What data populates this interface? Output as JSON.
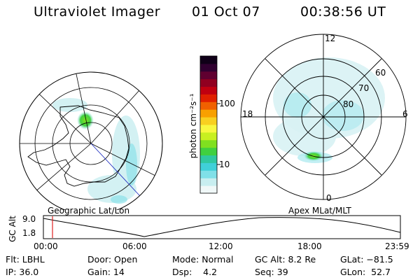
{
  "header": {
    "title": "Ultraviolet Imager",
    "date": "01 Oct 07",
    "time": "00:38:56 UT"
  },
  "panels": {
    "left_label": "Geographic Lat/Lon",
    "right_label": "Apex MLat/MLT",
    "right_mlt_labels": [
      "12",
      "18",
      "6",
      "0"
    ],
    "right_lat_labels": [
      "60",
      "70",
      "80"
    ]
  },
  "colorbar": {
    "unit_label": "photon cm⁻²s⁻¹",
    "tick_labels": [
      "100",
      "10"
    ],
    "colors": [
      "#f0f8f8",
      "#c8eef0",
      "#80e0e8",
      "#40d0d8",
      "#30c8a0",
      "#40d040",
      "#80e020",
      "#c8f020",
      "#f8f840",
      "#f8d020",
      "#f8a000",
      "#f06000",
      "#e02000",
      "#c00010",
      "#900020",
      "#600030",
      "#300030",
      "#100018"
    ]
  },
  "timeline": {
    "y_axis_label": "GC Alt",
    "y_ticks": [
      "9.0",
      "1.8"
    ],
    "x_ticks": [
      "00:00",
      "06:00",
      "12:00",
      "18:00",
      "23:59"
    ],
    "marker_color": "#e02020"
  },
  "info": {
    "row1": {
      "filter": "Flt: LBHL",
      "door": "Door: Open",
      "mode": "Mode: Normal",
      "gc_alt": "GC Alt: 8.2 Re",
      "glat": "GLat: −81.5"
    },
    "row2": {
      "ip": "IP: 36.0",
      "gain": "Gain: 14",
      "dsp": "Dsp:    4.2",
      "seq": "Seq: 39",
      "glon": "GLon:  52.7"
    }
  }
}
